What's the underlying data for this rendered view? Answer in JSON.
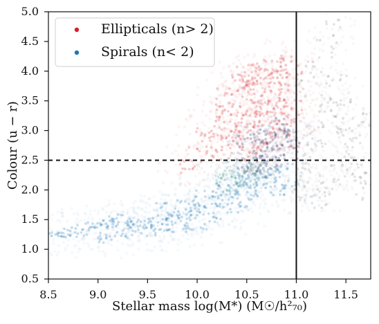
{
  "chart_data": {
    "type": "scatter",
    "xlabel": "Stellar mass log(M*) (M☉/h²₇₀)",
    "ylabel": "Colour (u − r)",
    "xlim": [
      8.5,
      11.75
    ],
    "ylim": [
      0.5,
      5.0
    ],
    "x_ticks": [
      8.5,
      9.0,
      9.5,
      10.0,
      10.5,
      11.0,
      11.5
    ],
    "y_ticks": [
      0.5,
      1.0,
      1.5,
      2.0,
      2.5,
      3.0,
      3.5,
      4.0,
      4.5,
      5.0
    ],
    "x_tick_labels": [
      "8.5",
      "9.0",
      "9.5",
      "10.0",
      "10.5",
      "11.0",
      "11.5"
    ],
    "y_tick_labels": [
      "0.5",
      "1.0",
      "1.5",
      "2.0",
      "2.5",
      "3.0",
      "3.5",
      "4.0",
      "4.5",
      "5.0"
    ],
    "legend_placement": "top-left",
    "grid": false,
    "reference_lines": {
      "horizontal_dashed_y": 2.5,
      "vertical_solid_x": 11.0
    },
    "series": [
      {
        "name": "Ellipticals (n> 2)",
        "color": "#d61f2a",
        "points": [
          [
            10.2,
            3.0
          ],
          [
            10.3,
            3.2
          ],
          [
            10.4,
            3.4
          ],
          [
            10.5,
            3.7
          ],
          [
            10.6,
            3.8
          ],
          [
            10.7,
            3.9
          ],
          [
            10.8,
            3.5
          ],
          [
            10.9,
            3.2
          ],
          [
            10.35,
            2.8
          ],
          [
            10.45,
            3.0
          ],
          [
            10.55,
            3.2
          ],
          [
            10.65,
            3.4
          ],
          [
            10.75,
            3.6
          ],
          [
            10.85,
            3.8
          ],
          [
            10.95,
            3.4
          ],
          [
            10.25,
            2.6
          ],
          [
            10.35,
            2.9
          ],
          [
            10.5,
            3.1
          ],
          [
            10.6,
            3.5
          ],
          [
            10.7,
            3.3
          ],
          [
            10.82,
            3.0
          ],
          [
            10.92,
            2.8
          ],
          [
            9.9,
            2.4
          ],
          [
            10.0,
            2.6
          ],
          [
            10.1,
            2.9
          ],
          [
            10.2,
            3.3
          ],
          [
            10.3,
            3.6
          ],
          [
            10.4,
            3.8
          ],
          [
            10.5,
            4.0
          ],
          [
            10.6,
            3.9
          ],
          [
            10.7,
            4.1
          ],
          [
            10.8,
            3.9
          ],
          [
            10.9,
            4.2
          ],
          [
            10.95,
            4.0
          ],
          [
            10.85,
            3.3
          ],
          [
            10.75,
            2.9
          ],
          [
            10.65,
            2.7
          ],
          [
            10.55,
            2.6
          ]
        ]
      },
      {
        "name": "Spirals (n< 2)",
        "color": "#1f77b4",
        "points": [
          [
            8.6,
            1.2
          ],
          [
            8.7,
            1.3
          ],
          [
            8.8,
            1.3
          ],
          [
            8.9,
            1.35
          ],
          [
            9.0,
            1.4
          ],
          [
            9.1,
            1.45
          ],
          [
            9.2,
            1.5
          ],
          [
            9.3,
            1.5
          ],
          [
            9.4,
            1.45
          ],
          [
            9.5,
            1.4
          ],
          [
            9.6,
            1.45
          ],
          [
            9.7,
            1.5
          ],
          [
            9.8,
            1.55
          ],
          [
            9.9,
            1.6
          ],
          [
            10.0,
            1.65
          ],
          [
            10.1,
            1.7
          ],
          [
            10.2,
            1.8
          ],
          [
            10.3,
            1.9
          ],
          [
            10.4,
            2.0
          ],
          [
            10.5,
            2.1
          ],
          [
            10.6,
            2.15
          ],
          [
            10.7,
            2.2
          ],
          [
            10.8,
            2.3
          ],
          [
            10.9,
            2.35
          ],
          [
            9.0,
            1.2
          ],
          [
            9.2,
            1.25
          ],
          [
            9.4,
            1.3
          ],
          [
            9.6,
            1.32
          ],
          [
            9.8,
            1.36
          ],
          [
            10.0,
            1.42
          ],
          [
            10.2,
            1.55
          ],
          [
            10.4,
            1.7
          ],
          [
            10.6,
            1.9
          ],
          [
            10.8,
            2.0
          ],
          [
            10.95,
            2.1
          ],
          [
            9.7,
            1.7
          ],
          [
            9.9,
            1.8
          ],
          [
            10.1,
            1.95
          ],
          [
            10.3,
            2.05
          ],
          [
            10.5,
            2.2
          ]
        ]
      }
    ],
    "background_populations": [
      {
        "name": "",
        "color": "#8a8a8a",
        "points": [
          [
            11.05,
            2.0
          ],
          [
            11.1,
            2.2
          ],
          [
            11.15,
            2.4
          ],
          [
            11.2,
            2.7
          ],
          [
            11.25,
            3.0
          ],
          [
            11.3,
            3.3
          ],
          [
            11.35,
            3.6
          ],
          [
            11.4,
            3.8
          ],
          [
            11.45,
            3.5
          ],
          [
            11.5,
            3.1
          ],
          [
            11.55,
            2.7
          ],
          [
            11.6,
            2.4
          ],
          [
            11.65,
            2.2
          ],
          [
            11.7,
            2.0
          ],
          [
            11.15,
            1.8
          ],
          [
            11.25,
            1.9
          ],
          [
            11.35,
            2.1
          ],
          [
            11.45,
            2.4
          ],
          [
            11.55,
            2.9
          ],
          [
            11.65,
            3.2
          ],
          [
            11.1,
            3.7
          ],
          [
            11.2,
            4.0
          ],
          [
            11.3,
            4.4
          ],
          [
            11.4,
            4.7
          ]
        ]
      },
      {
        "name": "",
        "color": "#0b1f5c",
        "points": [
          [
            10.45,
            2.4
          ],
          [
            10.55,
            2.5
          ],
          [
            10.65,
            2.6
          ],
          [
            10.75,
            2.7
          ],
          [
            10.85,
            2.8
          ],
          [
            10.95,
            2.9
          ],
          [
            10.6,
            2.3
          ],
          [
            10.7,
            2.4
          ],
          [
            10.8,
            2.5
          ],
          [
            10.9,
            2.6
          ],
          [
            10.7,
            2.9
          ],
          [
            10.8,
            3.0
          ],
          [
            10.9,
            3.1
          ],
          [
            10.5,
            2.8
          ],
          [
            10.6,
            2.9
          ]
        ]
      },
      {
        "name": "",
        "color": "#2b8a7e",
        "points": [
          [
            10.2,
            2.2
          ],
          [
            10.3,
            2.25
          ],
          [
            10.4,
            2.3
          ],
          [
            10.5,
            2.35
          ],
          [
            10.6,
            2.4
          ],
          [
            10.35,
            2.05
          ],
          [
            10.45,
            2.15
          ],
          [
            10.55,
            2.25
          ]
        ]
      }
    ]
  }
}
